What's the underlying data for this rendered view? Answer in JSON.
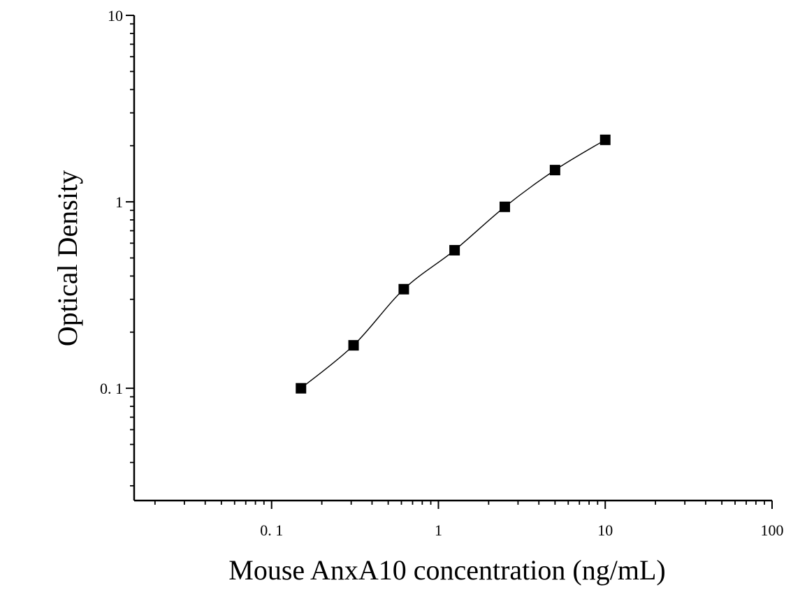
{
  "chart_data": {
    "type": "scatter",
    "title": "",
    "xlabel": "Mouse AnxA10 concentration (ng/mL)",
    "ylabel": "Optical Density",
    "x_scale": "log",
    "y_scale": "log",
    "xlim": [
      0.015,
      100
    ],
    "ylim": [
      0.025,
      10
    ],
    "x_ticks": [
      {
        "value": 0.1,
        "label": "0. 1"
      },
      {
        "value": 1,
        "label": "1"
      },
      {
        "value": 10,
        "label": "10"
      },
      {
        "value": 100,
        "label": "100"
      }
    ],
    "y_ticks": [
      {
        "value": 0.1,
        "label": "0. 1"
      },
      {
        "value": 1,
        "label": "1"
      },
      {
        "value": 10,
        "label": "10"
      }
    ],
    "grid": false,
    "legend": "none",
    "marker_color": "#000000",
    "curve_color": "#000000",
    "series": [
      {
        "x": [
          0.15,
          0.31,
          0.62,
          1.25,
          2.5,
          5,
          10
        ],
        "y": [
          0.1,
          0.17,
          0.34,
          0.55,
          0.94,
          1.48,
          2.15
        ]
      }
    ]
  }
}
